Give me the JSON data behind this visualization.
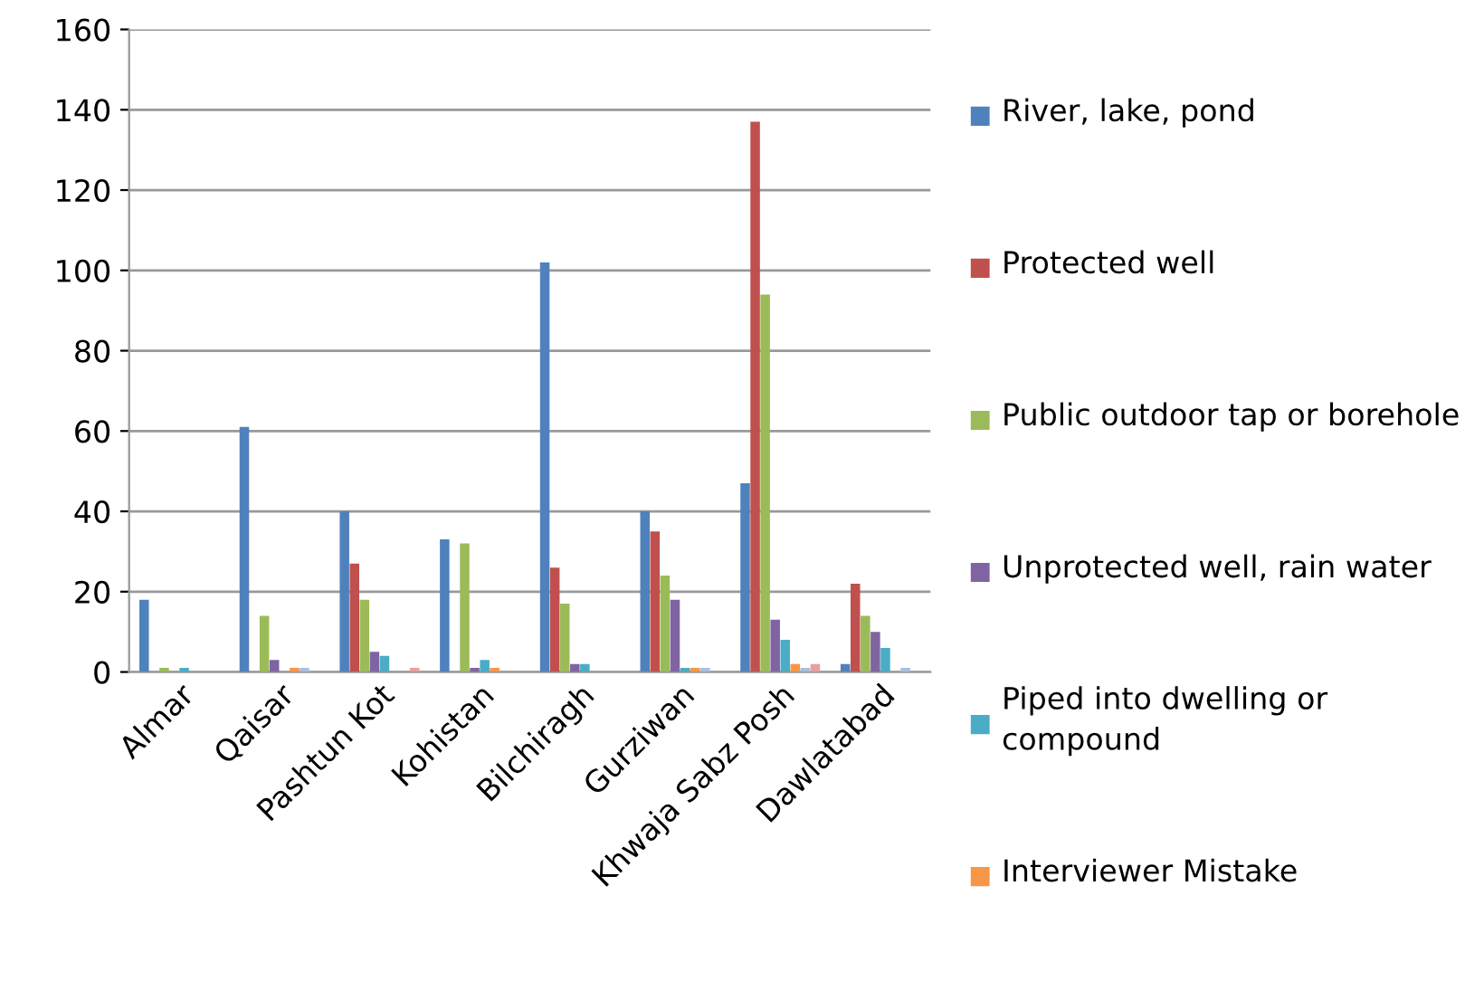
{
  "chart_data": {
    "type": "bar",
    "categories": [
      "Almar",
      "Qaisar",
      "Pashtun Kot",
      "Kohistan",
      "Bilchiragh",
      "Gurziwan",
      "Khwaja Sabz Posh",
      "Dawlatabad"
    ],
    "series": [
      {
        "name": "River, lake, pond",
        "color": "#4f81bd",
        "values": [
          18,
          61,
          40,
          33,
          102,
          40,
          47,
          2
        ]
      },
      {
        "name": "Protected well",
        "color": "#c0504d",
        "values": [
          0,
          0,
          27,
          0,
          26,
          35,
          137,
          22
        ]
      },
      {
        "name": "Public outdoor tap or borehole",
        "color": "#9bbb59",
        "values": [
          1,
          14,
          18,
          32,
          17,
          24,
          94,
          14
        ]
      },
      {
        "name": "Unprotected well, rain water",
        "color": "#8064a2",
        "values": [
          0,
          3,
          5,
          1,
          2,
          18,
          13,
          10
        ]
      },
      {
        "name": "Piped into dwelling or compound",
        "color": "#4bacc6",
        "values": [
          1,
          0,
          4,
          3,
          2,
          1,
          8,
          6
        ]
      },
      {
        "name": "Interviewer Mistake",
        "color": "#f79646",
        "values": [
          0,
          1,
          0,
          1,
          0,
          1,
          2,
          0
        ]
      },
      {
        "color": "#a9bee0",
        "values": [
          0,
          1,
          0,
          0,
          0,
          1,
          1,
          1
        ]
      },
      {
        "color": "#e6a0a0",
        "values": [
          0,
          0,
          1,
          0,
          0,
          0,
          2,
          0
        ]
      }
    ],
    "ylim": [
      0,
      160
    ],
    "yticks": [
      0,
      20,
      40,
      60,
      80,
      100,
      120,
      140,
      160
    ],
    "grid": "y",
    "legend": "right"
  }
}
